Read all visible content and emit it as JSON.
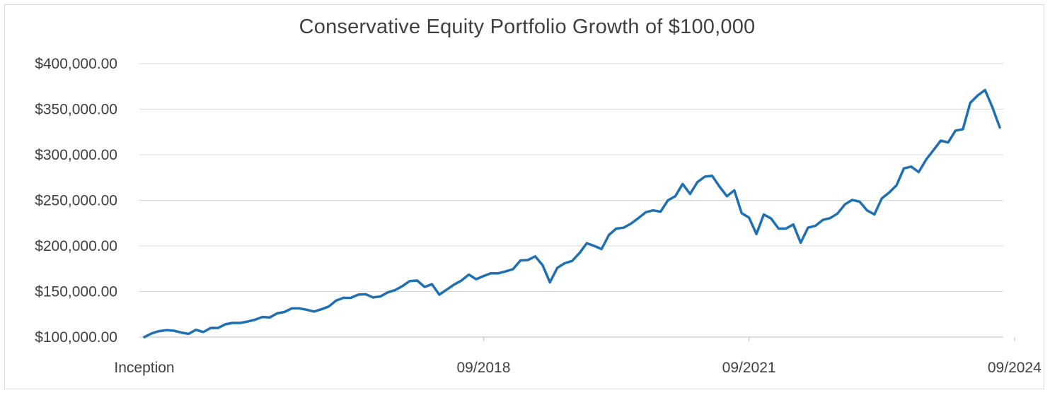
{
  "chart_data": {
    "type": "line",
    "title": "Conservative Equity Portfolio Growth of $100,000",
    "xlabel": "",
    "ylabel": "",
    "ylim": [
      100000,
      400000
    ],
    "y_ticks": [
      100000,
      150000,
      200000,
      250000,
      300000,
      350000,
      400000
    ],
    "y_tick_labels": [
      "$100,000.00",
      "$150,000.00",
      "$200,000.00",
      "$250,000.00",
      "$300,000.00",
      "$350,000.00",
      "$400,000.00"
    ],
    "x_tick_labels": [
      "Inception",
      "09/2018",
      "09/2021",
      "09/2024"
    ],
    "x_tick_index": [
      0,
      46,
      82,
      118
    ],
    "grid": "horizontal",
    "legend": "none",
    "line_color": "#1f6fb3",
    "series": [
      {
        "values": [
          100000,
          104000,
          106500,
          107500,
          107000,
          105000,
          103500,
          108000,
          105500,
          110000,
          110000,
          114000,
          115500,
          115500,
          117000,
          119000,
          122000,
          121500,
          126000,
          127500,
          131500,
          131500,
          130000,
          128000,
          130500,
          133500,
          140000,
          143000,
          143000,
          146500,
          147000,
          143500,
          144500,
          149000,
          151500,
          156000,
          161500,
          162000,
          155000,
          158000,
          146500,
          152000,
          157500,
          162000,
          168500,
          163500,
          167000,
          170000,
          170000,
          172000,
          174500,
          184000,
          184500,
          188500,
          179000,
          160000,
          176000,
          181000,
          183500,
          192000,
          203000,
          200000,
          196500,
          212000,
          219000,
          220000,
          224500,
          230500,
          237000,
          239000,
          237500,
          250000,
          254500,
          268000,
          257000,
          270000,
          276000,
          277000,
          265000,
          254500,
          261000,
          236000,
          231000,
          213000,
          234500,
          230000,
          219000,
          219000,
          223500,
          203500,
          220000,
          222000,
          228500,
          230500,
          235500,
          245500,
          250500,
          248500,
          239000,
          234500,
          252000,
          258500,
          266500,
          285000,
          287000,
          281000,
          294500,
          305000,
          315500,
          313500,
          326500,
          328000,
          357000,
          365000,
          371000,
          352000,
          330000
        ]
      }
    ]
  }
}
